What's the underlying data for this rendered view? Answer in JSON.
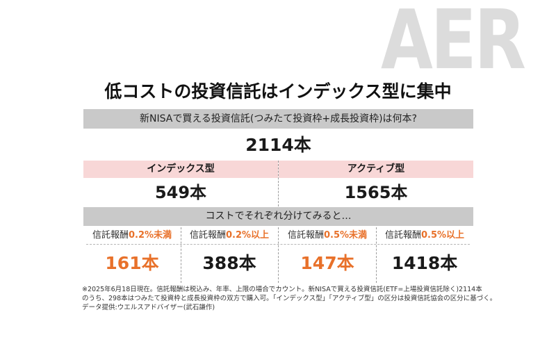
{
  "logo": {
    "text": "AERA"
  },
  "title": "低コストの投資信託はインデックス型に集中",
  "question": "新NISAで買える投資信託(つみたて投資枠+成長投資枠)は何本?",
  "total": "2114本",
  "types": [
    {
      "label": "インデックス型",
      "count": "549本"
    },
    {
      "label": "アクティブ型",
      "count": "1565本"
    }
  ],
  "split_label": "コストでそれぞれ分けてみると…",
  "categories": [
    {
      "prefix": "信託報酬",
      "highlight": "0.2%未満",
      "count": "161本",
      "count_color": "#e8712a"
    },
    {
      "prefix": "信託報酬",
      "highlight": "0.2%以上",
      "count": "388本",
      "count_color": "#1a1a1a"
    },
    {
      "prefix": "信託報酬",
      "highlight": "0.5%未満",
      "count": "147本",
      "count_color": "#e8712a"
    },
    {
      "prefix": "信託報酬",
      "highlight": "0.5%以上",
      "count": "1418本",
      "count_color": "#1a1a1a"
    }
  ],
  "footnotes": [
    "※2025年6月18日現在。信託報酬は税込み、年率、上限の場合でカウント。新NISAで買える投資信託(ETF=上場投資信託除く)2114本",
    "のうち、298本はつみたて投資枠と成長投資枠の双方で購入可。「インデックス型」「アクティブ型」の区分は投資信託協会の区分に基づく。",
    "データ提供:ウエルスアドバイザー(武石謙作)"
  ],
  "colors": {
    "accent_orange": "#e8712a",
    "header_gray": "#c9c9c9",
    "pink_band": "#f8d7d7",
    "logo_gray": "#dcdcdc"
  }
}
